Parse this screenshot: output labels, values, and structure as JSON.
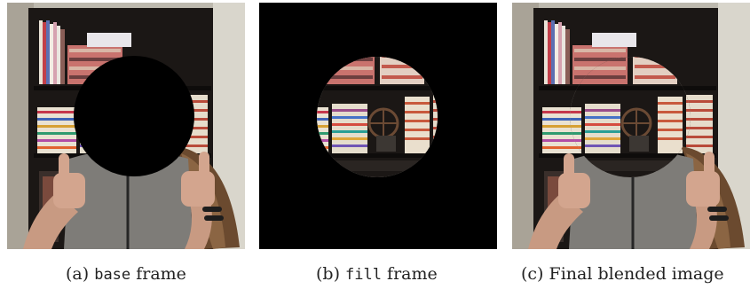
{
  "figure": {
    "panels": [
      {
        "name": "base",
        "caption_prefix": "(a)",
        "caption_code": "base",
        "caption_suffix": "frame"
      },
      {
        "name": "fill",
        "caption_prefix": "(b)",
        "caption_code": "fill",
        "caption_suffix": "frame"
      },
      {
        "name": "final",
        "caption_prefix": "(c)",
        "caption_text": "Final blended image"
      }
    ]
  }
}
